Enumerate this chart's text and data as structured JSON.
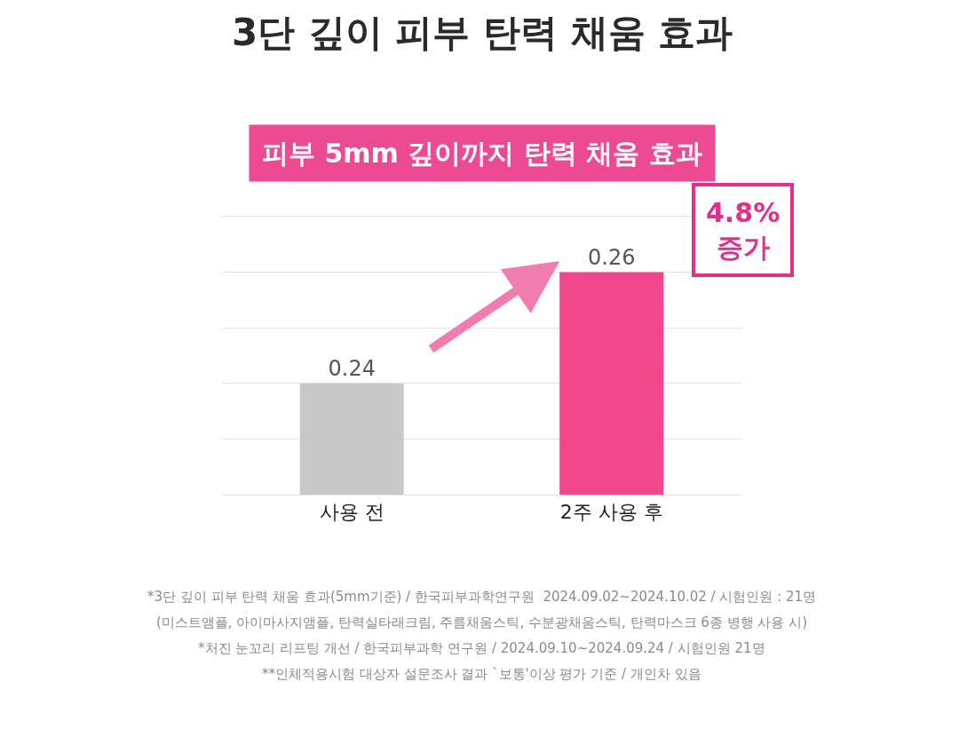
{
  "chart_data": {
    "type": "bar",
    "title": "3단 깊이 피부 탄력 채움 효과",
    "subtitle": "피부 5mm 깊이까지 탄력 채움 효과",
    "categories": [
      "사용 전",
      "2주 사용 후"
    ],
    "values": [
      0.24,
      0.26
    ],
    "colors": [
      "#c8c8c8",
      "#f0468c"
    ],
    "data_labels": true,
    "ylim": [
      0.22,
      0.27
    ],
    "yticks": [
      {
        "value": 0.23,
        "label": null
      },
      {
        "value": 0.24,
        "label": null
      },
      {
        "value": 0.25,
        "label": null
      },
      {
        "value": 0.26,
        "label": null
      }
    ],
    "tick_labels": "x",
    "grid": "y",
    "annotations": [
      "4.8%\n증가",
      "*3단 깊이 피부 탄력 채움 효과(5mm기준) / 한국피부과학연구원  2024.09.02~2024.10.02 / 시험인원 : 21명",
      "(미스트앰플, 아이마사지앰플, 탄력실타래크림, 주름채움스틱, 수분광채움스틱, 탄력마스크 6종 병행 사용 시)",
      "*처진 눈꼬리 리프팅 개선 / 한국피부과학 연구원 / 2024.09.10~2024.09.24 / 시험인원 21명",
      "**인체적용시험 대상자 설문조사 결과 `보통'이상 평가 기준 / 개인차 있음"
    ]
  }
}
